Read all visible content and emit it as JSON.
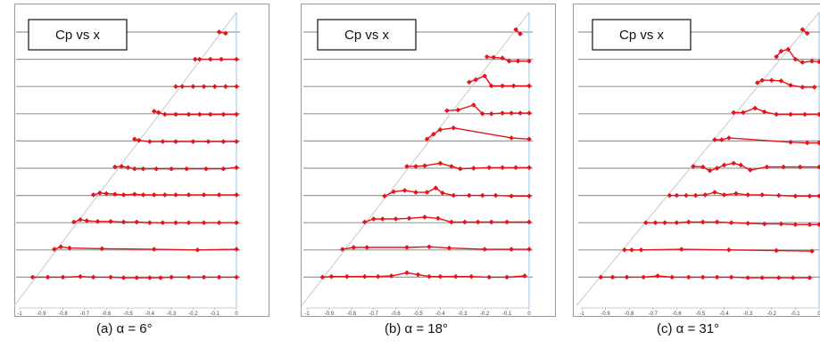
{
  "panels": [
    {
      "caption": "(a) α = 6°"
    },
    {
      "caption": "(b) α = 18°"
    },
    {
      "caption": "(c) α = 31°"
    }
  ],
  "chart_data": [
    {
      "type": "line",
      "title": "Cp vs x",
      "xlim": [
        -1,
        0
      ],
      "x_ticks": [
        "-1",
        "-0.9",
        "-0.8",
        "-0.7",
        "-0.6",
        "-0.5",
        "-0.4",
        "-0.3",
        "-0.2",
        "-0.1",
        "0"
      ],
      "grid": "horizontal",
      "colors": {
        "series": "#e3141b",
        "grid": "#9a9a9a",
        "axis": "#9cc3e6"
      },
      "stations": [
        {
          "x": [
            -0.08,
            -0.05
          ],
          "dy": [
            0.0,
            -0.2
          ]
        },
        {
          "x": [
            -0.19,
            -0.17,
            -0.12,
            -0.07,
            0.0
          ],
          "dy": [
            0,
            0,
            0,
            0,
            0
          ]
        },
        {
          "x": [
            -0.28,
            -0.25,
            -0.2,
            -0.15,
            -0.1,
            -0.05,
            0.0
          ],
          "dy": [
            0,
            0,
            0,
            0,
            0,
            0,
            0
          ]
        },
        {
          "x": [
            -0.38,
            -0.36,
            -0.33,
            -0.28,
            -0.22,
            -0.17,
            -0.12,
            -0.06,
            0.0
          ],
          "dy": [
            0.4,
            0.2,
            -0.1,
            -0.1,
            -0.1,
            -0.1,
            -0.1,
            -0.1,
            -0.1
          ]
        },
        {
          "x": [
            -0.47,
            -0.45,
            -0.4,
            -0.34,
            -0.28,
            -0.2,
            -0.13,
            -0.06,
            0.0
          ],
          "dy": [
            0.3,
            0.1,
            -0.1,
            -0.1,
            -0.1,
            -0.1,
            -0.1,
            -0.1,
            -0.1
          ]
        },
        {
          "x": [
            -0.56,
            -0.53,
            -0.5,
            -0.47,
            -0.43,
            -0.37,
            -0.3,
            -0.23,
            -0.14,
            -0.06,
            0.0
          ],
          "dy": [
            0.2,
            0.3,
            0.1,
            -0.1,
            -0.1,
            -0.1,
            -0.1,
            -0.1,
            -0.1,
            -0.1,
            0.1
          ]
        },
        {
          "x": [
            -0.66,
            -0.63,
            -0.6,
            -0.56,
            -0.52,
            -0.47,
            -0.43,
            -0.38,
            -0.33,
            -0.28,
            -0.22,
            -0.15,
            -0.08,
            0.0
          ],
          "dy": [
            0.1,
            0.4,
            0.3,
            0.2,
            0.1,
            0.2,
            0.1,
            0.1,
            0.1,
            0.1,
            0.1,
            0.1,
            0.1,
            0.1
          ]
        },
        {
          "x": [
            -0.75,
            -0.72,
            -0.69,
            -0.64,
            -0.58,
            -0.52,
            -0.46,
            -0.4,
            -0.34,
            -0.28,
            -0.22,
            -0.15,
            -0.08,
            0.0
          ],
          "dy": [
            0.1,
            0.5,
            0.3,
            0.2,
            0.2,
            0.1,
            0.1,
            0.0,
            0.0,
            0.0,
            0.0,
            0.0,
            0.0,
            0.0
          ]
        },
        {
          "x": [
            -0.84,
            -0.81,
            -0.77,
            -0.62,
            -0.38,
            -0.18,
            0.0
          ],
          "dy": [
            0.1,
            0.5,
            0.3,
            0.2,
            0.1,
            0.0,
            0.1
          ]
        },
        {
          "x": [
            -0.94,
            -0.87,
            -0.8,
            -0.72,
            -0.66,
            -0.58,
            -0.52,
            -0.46,
            -0.4,
            -0.35,
            -0.3,
            -0.22,
            -0.15,
            -0.08,
            0.0
          ],
          "dy": [
            0.0,
            0.0,
            0.0,
            0.1,
            0.0,
            0.0,
            -0.1,
            -0.1,
            -0.1,
            -0.1,
            0.0,
            0.0,
            0.0,
            0.0,
            0.0
          ]
        }
      ]
    },
    {
      "type": "line",
      "title": "Cp vs x",
      "xlim": [
        -1,
        0
      ],
      "x_ticks": [
        "-1",
        "-0.9",
        "-0.8",
        "-0.7",
        "-0.6",
        "-0.5",
        "-0.4",
        "-0.3",
        "-0.2",
        "-0.1",
        "0"
      ],
      "grid": "horizontal",
      "colors": {
        "series": "#e3141b",
        "grid": "#9a9a9a",
        "axis": "#9cc3e6"
      },
      "stations": [
        {
          "x": [
            -0.06,
            -0.04
          ],
          "dy": [
            0.4,
            -0.3
          ]
        },
        {
          "x": [
            -0.19,
            -0.16,
            -0.12,
            -0.09,
            -0.05,
            0.0
          ],
          "dy": [
            0.4,
            0.3,
            0.2,
            -0.3,
            -0.3,
            -0.3
          ]
        },
        {
          "x": [
            -0.27,
            -0.24,
            -0.2,
            -0.17,
            -0.12,
            -0.07,
            0.0
          ],
          "dy": [
            0.7,
            1.1,
            1.7,
            0.1,
            0.1,
            0.1,
            0.1
          ]
        },
        {
          "x": [
            -0.37,
            -0.32,
            -0.25,
            -0.21,
            -0.17,
            -0.12,
            -0.08,
            -0.04,
            0.0
          ],
          "dy": [
            0.5,
            0.6,
            1.4,
            0.0,
            0.0,
            0.1,
            0.1,
            0.1,
            0.1
          ]
        },
        {
          "x": [
            -0.46,
            -0.43,
            -0.4,
            -0.34,
            -0.08,
            0.0
          ],
          "dy": [
            0.3,
            1.1,
            1.8,
            2.1,
            0.5,
            0.3
          ]
        },
        {
          "x": [
            -0.55,
            -0.51,
            -0.47,
            -0.4,
            -0.35,
            -0.31,
            -0.25,
            -0.18,
            -0.12,
            -0.06,
            0.0
          ],
          "dy": [
            0.3,
            0.3,
            0.4,
            0.8,
            0.3,
            -0.1,
            0.0,
            0.1,
            0.1,
            0.1,
            0.1
          ]
        },
        {
          "x": [
            -0.65,
            -0.61,
            -0.56,
            -0.51,
            -0.46,
            -0.42,
            -0.39,
            -0.34,
            -0.27,
            -0.21,
            -0.15,
            -0.08,
            0.0
          ],
          "dy": [
            -0.1,
            0.6,
            0.8,
            0.5,
            0.5,
            1.2,
            0.4,
            0.0,
            0.0,
            0.0,
            0.0,
            -0.1,
            -0.1
          ]
        },
        {
          "x": [
            -0.74,
            -0.7,
            -0.66,
            -0.6,
            -0.54,
            -0.47,
            -0.41,
            -0.35,
            -0.29,
            -0.23,
            -0.17,
            -0.1,
            0.0
          ],
          "dy": [
            0.1,
            0.6,
            0.6,
            0.6,
            0.7,
            0.9,
            0.7,
            0.1,
            0.1,
            0.1,
            0.1,
            0.1,
            0.1
          ]
        },
        {
          "x": [
            -0.84,
            -0.79,
            -0.73,
            -0.55,
            -0.45,
            -0.36,
            -0.2,
            -0.08,
            0.0
          ],
          "dy": [
            0.1,
            0.4,
            0.4,
            0.4,
            0.5,
            0.3,
            0.1,
            0.1,
            0.1
          ]
        },
        {
          "x": [
            -0.93,
            -0.89,
            -0.82,
            -0.74,
            -0.68,
            -0.62,
            -0.55,
            -0.5,
            -0.45,
            -0.4,
            -0.33,
            -0.26,
            -0.18,
            -0.1,
            -0.02
          ],
          "dy": [
            0.0,
            0.1,
            0.1,
            0.1,
            0.1,
            0.2,
            0.7,
            0.4,
            0.1,
            0.1,
            0.1,
            0.1,
            0.0,
            0.0,
            0.2
          ]
        }
      ]
    },
    {
      "type": "line",
      "title": "Cp vs x",
      "xlim": [
        -1,
        0
      ],
      "x_ticks": [
        "-1",
        "-0.9",
        "-0.8",
        "-0.7",
        "-0.6",
        "-0.5",
        "-0.4",
        "-0.3",
        "-0.2",
        "-0.1",
        "0"
      ],
      "grid": "horizontal",
      "colors": {
        "series": "#e3141b",
        "grid": "#9a9a9a",
        "axis": "#9cc3e6"
      },
      "stations": [
        {
          "x": [
            -0.07,
            -0.05
          ],
          "dy": [
            0.4,
            -0.2
          ]
        },
        {
          "x": [
            -0.18,
            -0.16,
            -0.13,
            -0.1,
            -0.07,
            -0.03,
            0.0
          ],
          "dy": [
            0.4,
            1.3,
            1.6,
            0.0,
            -0.5,
            -0.3,
            -0.4
          ]
        },
        {
          "x": [
            -0.26,
            -0.24,
            -0.2,
            -0.16,
            -0.12,
            -0.07,
            -0.02
          ],
          "dy": [
            0.6,
            1.0,
            1.0,
            0.9,
            0.2,
            -0.1,
            -0.1
          ]
        },
        {
          "x": [
            -0.36,
            -0.32,
            -0.27,
            -0.23,
            -0.18,
            -0.12,
            -0.06,
            0.0
          ],
          "dy": [
            0.2,
            0.2,
            0.9,
            0.3,
            -0.1,
            -0.1,
            -0.1,
            -0.1
          ]
        },
        {
          "x": [
            -0.44,
            -0.41,
            -0.38,
            -0.12,
            -0.05,
            0.0
          ],
          "dy": [
            0.2,
            0.2,
            0.5,
            -0.2,
            -0.3,
            -0.3
          ]
        },
        {
          "x": [
            -0.53,
            -0.49,
            -0.46,
            -0.43,
            -0.4,
            -0.36,
            -0.33,
            -0.29,
            -0.22,
            -0.15,
            -0.08,
            0.0
          ],
          "dy": [
            0.3,
            0.2,
            -0.4,
            0.0,
            0.5,
            0.8,
            0.5,
            -0.3,
            0.2,
            0.2,
            0.2,
            0.2
          ]
        },
        {
          "x": [
            -0.63,
            -0.6,
            -0.56,
            -0.52,
            -0.48,
            -0.44,
            -0.4,
            -0.35,
            -0.3,
            -0.24,
            -0.17,
            -0.1,
            -0.04,
            0.0
          ],
          "dy": [
            0.0,
            0.0,
            0.0,
            0.0,
            0.1,
            0.5,
            0.1,
            0.3,
            0.1,
            0.1,
            0.0,
            -0.1,
            -0.1,
            -0.1
          ]
        },
        {
          "x": [
            -0.73,
            -0.69,
            -0.65,
            -0.6,
            -0.55,
            -0.49,
            -0.43,
            -0.37,
            -0.3,
            -0.23,
            -0.16,
            -0.1,
            -0.04,
            0.0
          ],
          "dy": [
            0.0,
            0.0,
            0.0,
            0.0,
            0.1,
            0.1,
            0.1,
            0.0,
            -0.1,
            -0.2,
            -0.2,
            -0.3,
            -0.3,
            -0.3
          ]
        },
        {
          "x": [
            -0.82,
            -0.79,
            -0.75,
            -0.58,
            -0.38,
            -0.18,
            -0.03
          ],
          "dy": [
            0.0,
            0.0,
            0.0,
            0.1,
            0.0,
            -0.1,
            -0.2
          ]
        },
        {
          "x": [
            -0.92,
            -0.87,
            -0.81,
            -0.74,
            -0.68,
            -0.62,
            -0.55,
            -0.49,
            -0.43,
            -0.37,
            -0.3,
            -0.24,
            -0.17,
            -0.11,
            -0.04
          ],
          "dy": [
            0.0,
            0.0,
            0.0,
            0.0,
            0.2,
            0.0,
            0.0,
            0.0,
            0.0,
            0.0,
            -0.1,
            -0.1,
            -0.1,
            -0.1,
            -0.1
          ]
        }
      ]
    }
  ]
}
